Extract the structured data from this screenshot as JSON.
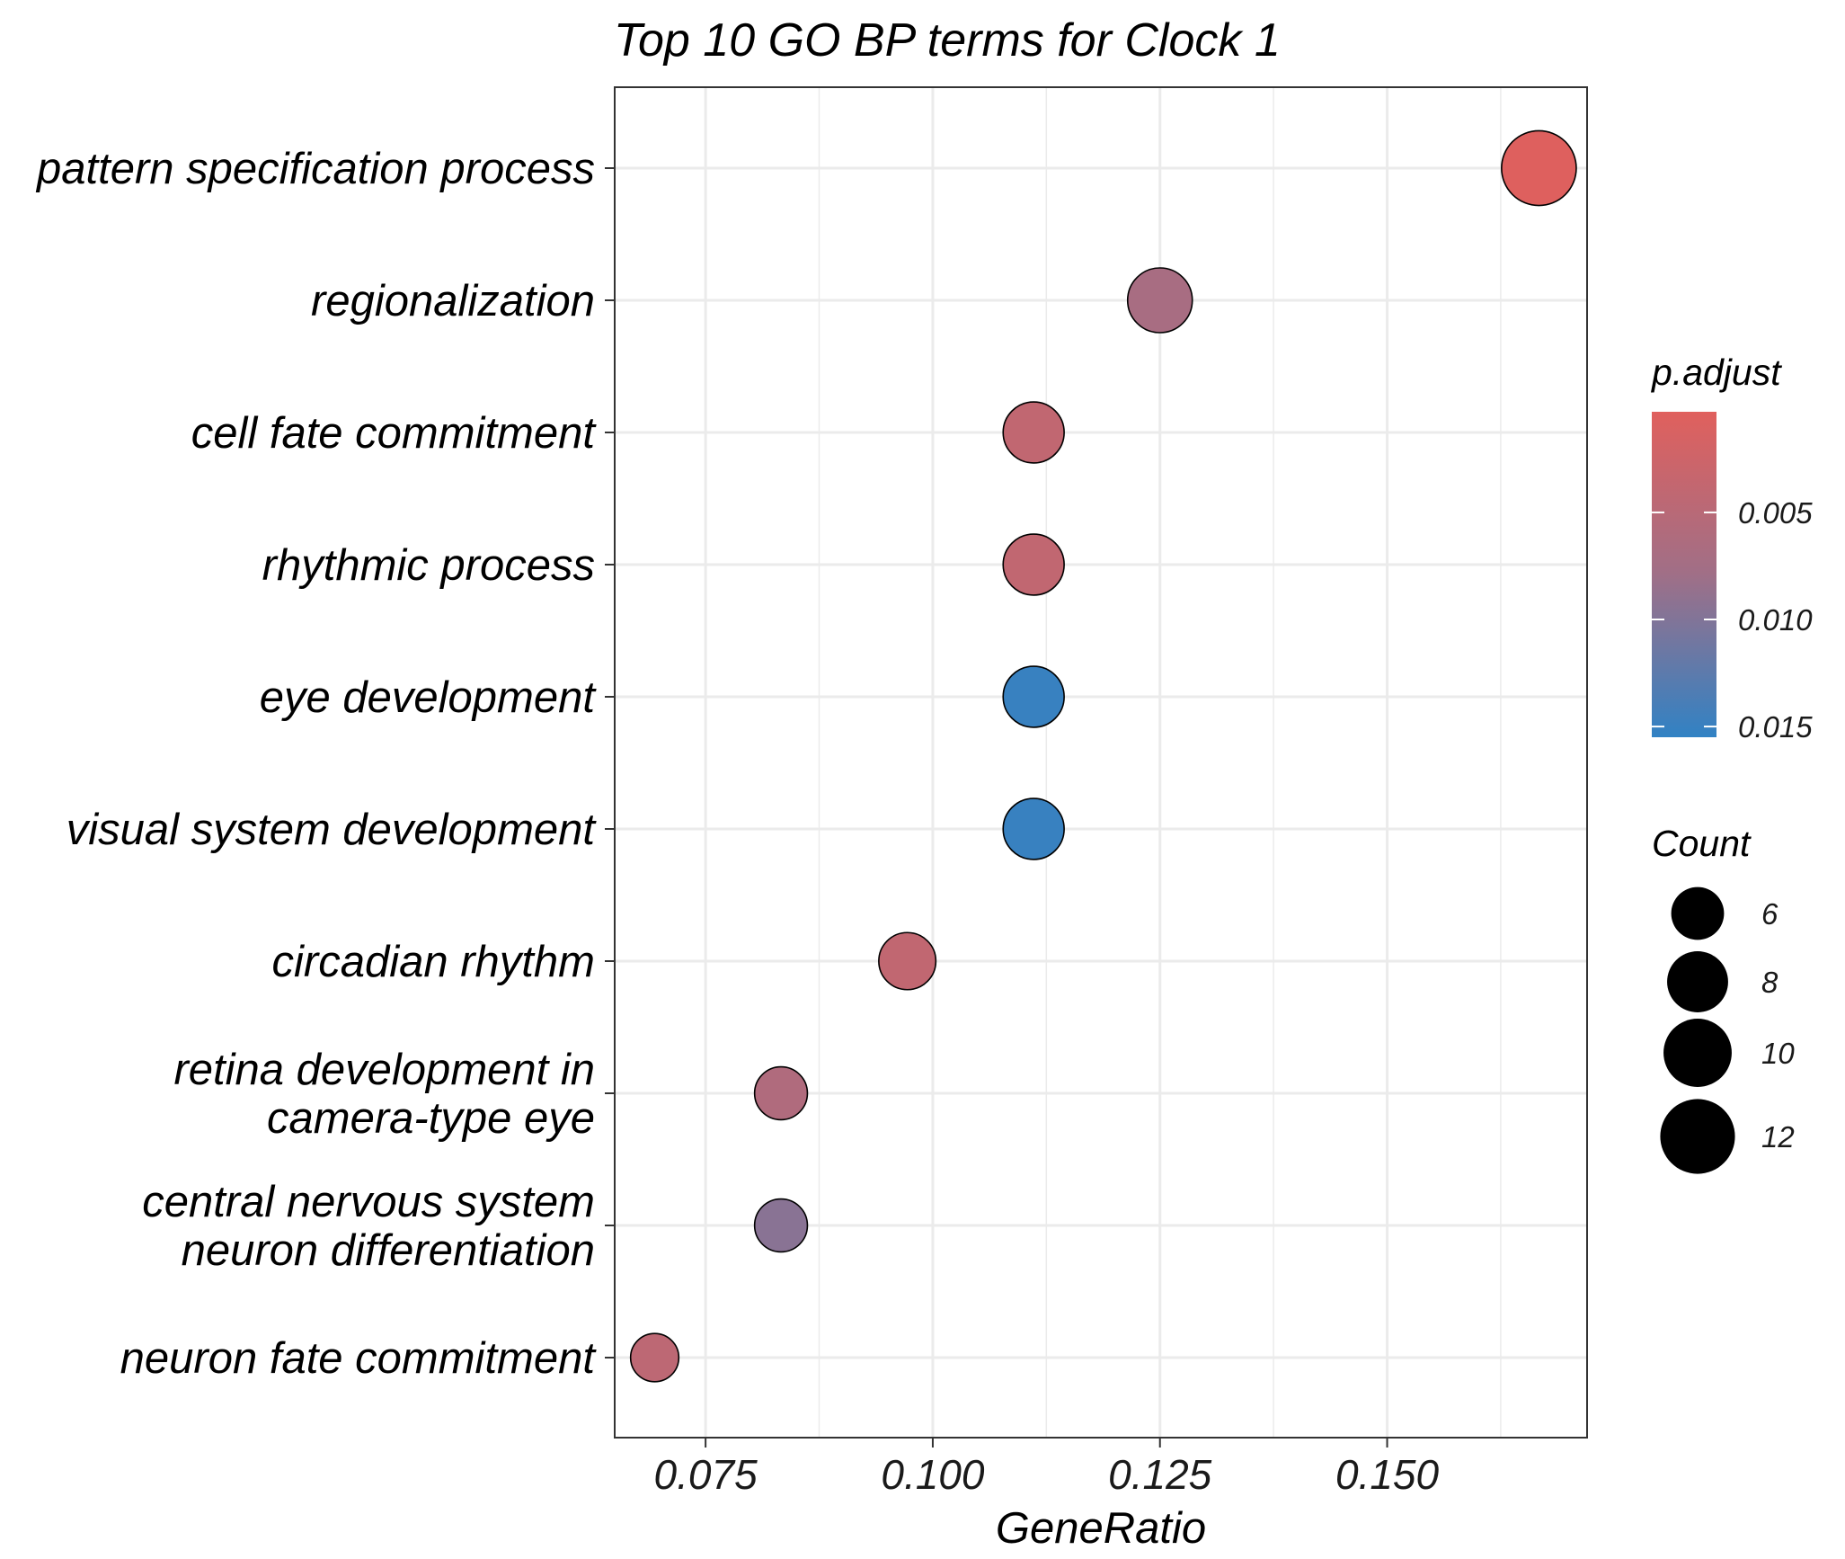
{
  "chart_data": {
    "type": "scatter",
    "title": "Top 10 GO BP terms for Clock 1",
    "xlabel": "GeneRatio",
    "ylabel": "",
    "xlim": [
      0.065,
      0.172
    ],
    "x_ticks": [
      0.075,
      0.1,
      0.125,
      0.15
    ],
    "x_tick_labels": [
      "0.075",
      "0.100",
      "0.125",
      "0.150"
    ],
    "grid": true,
    "categories": [
      "pattern specification process",
      "regionalization",
      "cell fate commitment",
      "rhythmic process",
      "eye development",
      "visual system development",
      "circadian rhythm",
      "retina development in camera-type eye",
      "central nervous system neuron differentiation",
      "neuron fate commitment"
    ],
    "category_label_lines": [
      [
        "pattern specification process"
      ],
      [
        "regionalization"
      ],
      [
        "cell fate commitment"
      ],
      [
        "rhythmic process"
      ],
      [
        "eye development"
      ],
      [
        "visual system development"
      ],
      [
        "circadian rhythm"
      ],
      [
        "retina development in",
        "camera-type eye"
      ],
      [
        "central nervous system",
        "neuron differentiation"
      ],
      [
        "neuron fate commitment"
      ]
    ],
    "points": [
      {
        "term": "pattern specification process",
        "gene_ratio": 0.1667,
        "count": 12,
        "p_adjust": 0.0005
      },
      {
        "term": "regionalization",
        "gene_ratio": 0.125,
        "count": 9,
        "p_adjust": 0.007
      },
      {
        "term": "cell fate commitment",
        "gene_ratio": 0.1111,
        "count": 8,
        "p_adjust": 0.004
      },
      {
        "term": "rhythmic process",
        "gene_ratio": 0.1111,
        "count": 8,
        "p_adjust": 0.004
      },
      {
        "term": "eye development",
        "gene_ratio": 0.1111,
        "count": 8,
        "p_adjust": 0.015
      },
      {
        "term": "visual system development",
        "gene_ratio": 0.1111,
        "count": 8,
        "p_adjust": 0.015
      },
      {
        "term": "circadian rhythm",
        "gene_ratio": 0.0972,
        "count": 7,
        "p_adjust": 0.004
      },
      {
        "term": "retina development in camera-type eye",
        "gene_ratio": 0.0833,
        "count": 6,
        "p_adjust": 0.006
      },
      {
        "term": "central nervous system neuron differentiation",
        "gene_ratio": 0.0833,
        "count": 6,
        "p_adjust": 0.0095
      },
      {
        "term": "neuron fate commitment",
        "gene_ratio": 0.0694,
        "count": 5,
        "p_adjust": 0.0045
      }
    ],
    "color_legend": {
      "title": "p.adjust",
      "range": [
        0.0003,
        0.0155
      ],
      "low_color": "#e0605d",
      "high_color": "#3182c4",
      "ticks": [
        0.005,
        0.01,
        0.015
      ],
      "tick_labels": [
        "0.005",
        "0.010",
        "0.015"
      ]
    },
    "size_legend": {
      "title": "Count",
      "values": [
        6,
        8,
        10,
        12
      ],
      "labels": [
        "6",
        "8",
        "10",
        "12"
      ]
    }
  }
}
